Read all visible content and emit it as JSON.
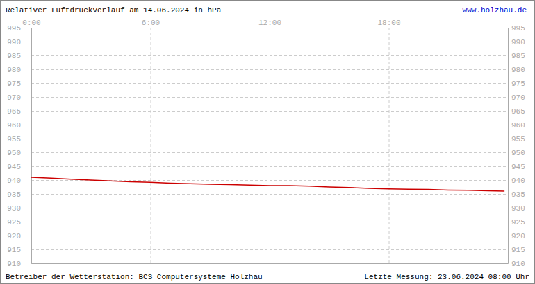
{
  "chart_data": {
    "type": "line",
    "title": "Relativer Luftdruckverlauf am 14.06.2024 in hPa",
    "annotations": [
      "www.holzhau.de",
      "Betreiber der Wetterstation: BCS Computersysteme Holzhau",
      "Letzte Messung: 23.06.2024 08:00 Uhr"
    ],
    "x": [
      0,
      1,
      2,
      3,
      4,
      5,
      6,
      7,
      8,
      9,
      10,
      11,
      12,
      13,
      14,
      15,
      16,
      17,
      18,
      19,
      20,
      21,
      22,
      23,
      23.83
    ],
    "values": [
      941,
      940.7,
      940.3,
      940,
      939.7,
      939.4,
      939.2,
      938.9,
      938.7,
      938.5,
      938.4,
      938.2,
      938,
      938,
      937.8,
      937.5,
      937.3,
      937,
      936.8,
      936.7,
      936.6,
      936.4,
      936.3,
      936.1,
      936
    ],
    "color": "#cc0000",
    "xlim": [
      0,
      24
    ],
    "xticks": [
      {
        "value": 0,
        "label": "0:00"
      },
      {
        "value": 6,
        "label": "6:00"
      },
      {
        "value": 12,
        "label": "12:00"
      },
      {
        "value": 18,
        "label": "18:00"
      }
    ],
    "ylim": [
      910,
      995
    ],
    "yticks": [
      910,
      915,
      920,
      925,
      930,
      935,
      940,
      945,
      950,
      955,
      960,
      965,
      970,
      975,
      980,
      985,
      990,
      995
    ],
    "grid": true
  }
}
